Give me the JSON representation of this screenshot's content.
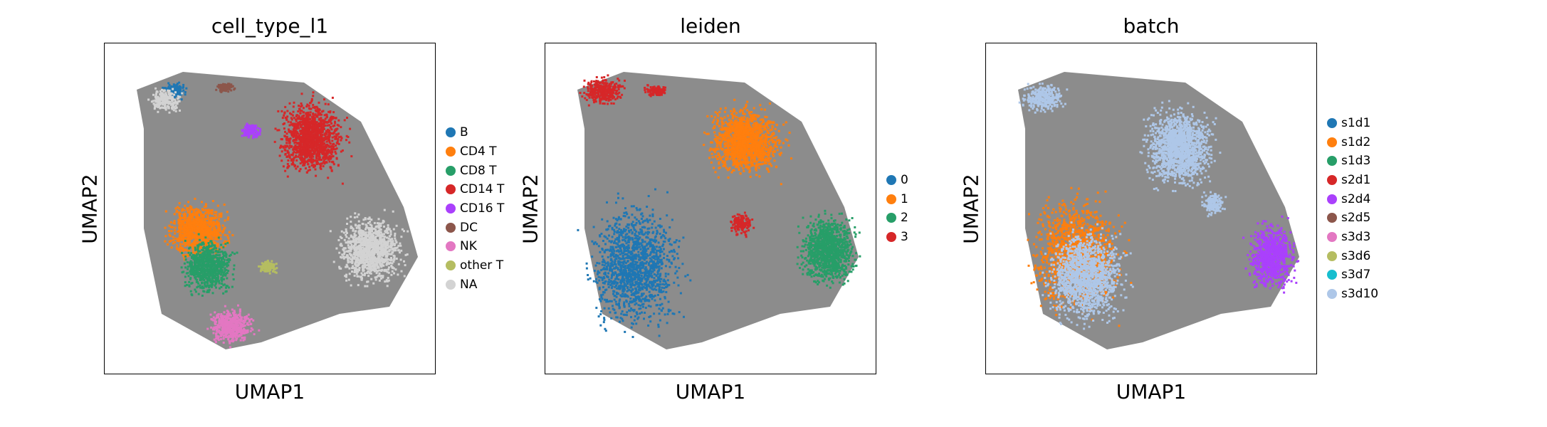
{
  "chart_data": [
    {
      "type": "scatter",
      "title": "cell_type_l1",
      "xlabel": "UMAP1",
      "ylabel": "UMAP2",
      "legend_placement": "right",
      "grid": false,
      "ticks": false,
      "background_edges": "#808080",
      "legend": [
        {
          "label": "B",
          "color": "#1f77b4"
        },
        {
          "label": "CD4 T",
          "color": "#ff7f0e"
        },
        {
          "label": "CD8 T",
          "color": "#279e68"
        },
        {
          "label": "CD14 T",
          "color": "#d62728"
        },
        {
          "label": "CD16 T",
          "color": "#aa40fc"
        },
        {
          "label": "DC",
          "color": "#8c564b"
        },
        {
          "label": "NK",
          "color": "#e377c2"
        },
        {
          "label": "other T",
          "color": "#b5bd61"
        },
        {
          "label": "NA",
          "color": "#d3d3d3"
        }
      ],
      "clusters": [
        {
          "label": "B",
          "cx": 0.21,
          "cy": 0.86,
          "rx": 0.05,
          "ry": 0.035
        },
        {
          "label": "NA",
          "cx": 0.18,
          "cy": 0.83,
          "rx": 0.07,
          "ry": 0.05
        },
        {
          "label": "DC",
          "cx": 0.36,
          "cy": 0.87,
          "rx": 0.04,
          "ry": 0.02
        },
        {
          "label": "CD16 T",
          "cx": 0.44,
          "cy": 0.74,
          "rx": 0.04,
          "ry": 0.04
        },
        {
          "label": "CD14 T",
          "cx": 0.62,
          "cy": 0.72,
          "rx": 0.14,
          "ry": 0.16
        },
        {
          "label": "CD4 T",
          "cx": 0.28,
          "cy": 0.44,
          "rx": 0.13,
          "ry": 0.12
        },
        {
          "label": "CD8 T",
          "cx": 0.31,
          "cy": 0.33,
          "rx": 0.11,
          "ry": 0.12
        },
        {
          "label": "NK",
          "cx": 0.38,
          "cy": 0.15,
          "rx": 0.1,
          "ry": 0.08
        },
        {
          "label": "NA",
          "cx": 0.8,
          "cy": 0.38,
          "rx": 0.14,
          "ry": 0.14
        },
        {
          "label": "other T",
          "cx": 0.49,
          "cy": 0.33,
          "rx": 0.04,
          "ry": 0.03
        }
      ]
    },
    {
      "type": "scatter",
      "title": "leiden",
      "xlabel": "UMAP1",
      "ylabel": "UMAP2",
      "legend_placement": "right",
      "grid": false,
      "ticks": false,
      "background_edges": "#808080",
      "legend": [
        {
          "label": "0",
          "color": "#1f77b4"
        },
        {
          "label": "1",
          "color": "#ff7f0e"
        },
        {
          "label": "2",
          "color": "#279e68"
        },
        {
          "label": "3",
          "color": "#d62728"
        }
      ],
      "clusters": [
        {
          "label": "3",
          "cx": 0.17,
          "cy": 0.86,
          "rx": 0.09,
          "ry": 0.06
        },
        {
          "label": "3",
          "cx": 0.33,
          "cy": 0.86,
          "rx": 0.05,
          "ry": 0.025
        },
        {
          "label": "1",
          "cx": 0.6,
          "cy": 0.71,
          "rx": 0.16,
          "ry": 0.15
        },
        {
          "label": "3",
          "cx": 0.59,
          "cy": 0.46,
          "rx": 0.05,
          "ry": 0.05
        },
        {
          "label": "2",
          "cx": 0.85,
          "cy": 0.38,
          "rx": 0.12,
          "ry": 0.15
        },
        {
          "label": "0",
          "cx": 0.27,
          "cy": 0.33,
          "rx": 0.2,
          "ry": 0.27
        }
      ]
    },
    {
      "type": "scatter",
      "title": "batch",
      "xlabel": "UMAP1",
      "ylabel": "UMAP2",
      "legend_placement": "right",
      "grid": false,
      "ticks": false,
      "background_edges": "#808080",
      "legend": [
        {
          "label": "s1d1",
          "color": "#1f77b4"
        },
        {
          "label": "s1d2",
          "color": "#ff7f0e"
        },
        {
          "label": "s1d3",
          "color": "#279e68"
        },
        {
          "label": "s2d1",
          "color": "#d62728"
        },
        {
          "label": "s2d4",
          "color": "#aa40fc"
        },
        {
          "label": "s2d5",
          "color": "#8c564b"
        },
        {
          "label": "s3d3",
          "color": "#e377c2"
        },
        {
          "label": "s3d6",
          "color": "#b5bd61"
        },
        {
          "label": "s3d7",
          "color": "#17becf"
        },
        {
          "label": "s3d10",
          "color": "#aec7e8"
        }
      ],
      "clusters": [
        {
          "label": "s3d10",
          "cx": 0.17,
          "cy": 0.84,
          "rx": 0.09,
          "ry": 0.06
        },
        {
          "label": "s3d10",
          "cx": 0.58,
          "cy": 0.69,
          "rx": 0.15,
          "ry": 0.17
        },
        {
          "label": "s1d2",
          "cx": 0.27,
          "cy": 0.37,
          "rx": 0.19,
          "ry": 0.25
        },
        {
          "label": "s3d10",
          "cx": 0.3,
          "cy": 0.3,
          "rx": 0.17,
          "ry": 0.2
        },
        {
          "label": "s2d4",
          "cx": 0.86,
          "cy": 0.36,
          "rx": 0.1,
          "ry": 0.14
        },
        {
          "label": "s3d10",
          "cx": 0.68,
          "cy": 0.52,
          "rx": 0.05,
          "ry": 0.05
        }
      ]
    }
  ]
}
